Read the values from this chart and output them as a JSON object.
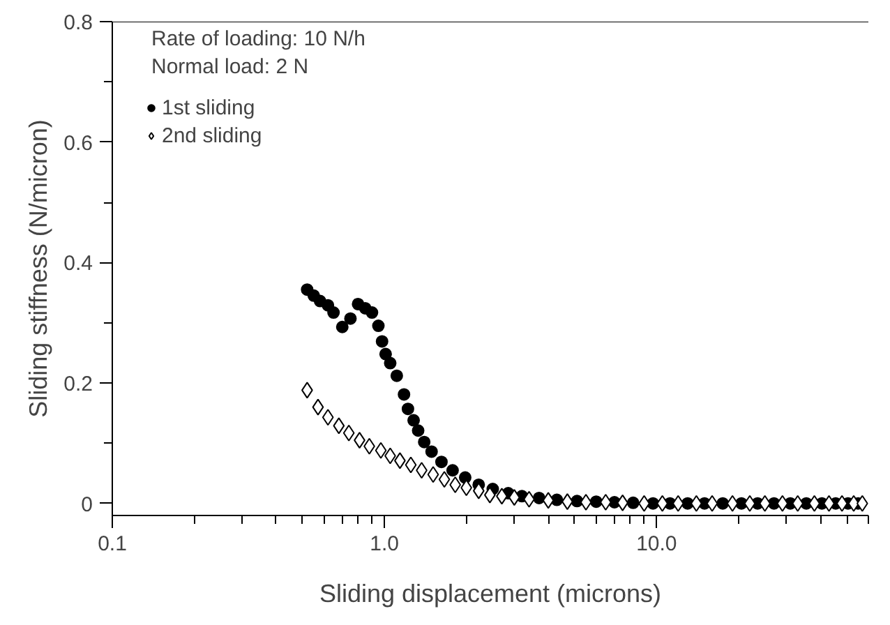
{
  "chart_data": {
    "type": "scatter",
    "xlabel": "Sliding displacement (microns)",
    "ylabel": "Sliding stiffness (N/micron)",
    "log": "x",
    "xlim": [
      0.1,
      60
    ],
    "xticks": [
      {
        "value": 0.1,
        "label": "0.1"
      },
      {
        "value": 1,
        "label": "1.0"
      },
      {
        "value": 10,
        "label": "10.0"
      }
    ],
    "ylim": [
      -0.02,
      0.8
    ],
    "yticks": [
      0,
      0.2,
      0.4,
      0.6,
      0.8
    ],
    "grid": false,
    "legend": "top left",
    "annotations": [
      "Rate of loading: 10 N/h",
      "Normal load: 2 N"
    ],
    "series": [
      {
        "name": "1st sliding",
        "color": "#000000",
        "marker": "circle",
        "x": [
          0.52,
          0.55,
          0.58,
          0.62,
          0.65,
          0.7,
          0.75,
          0.8,
          0.85,
          0.9,
          0.95,
          0.98,
          1.01,
          1.05,
          1.11,
          1.18,
          1.22,
          1.28,
          1.33,
          1.4,
          1.49,
          1.62,
          1.78,
          1.98,
          2.22,
          2.5,
          2.85,
          3.2,
          3.7,
          4.3,
          5.1,
          6,
          7,
          8.2,
          9.7,
          11.2,
          13,
          15,
          17.5,
          20.5,
          23.5,
          27,
          31,
          35.5,
          40.5,
          45.5,
          50.5,
          55
        ],
        "values": [
          0.355,
          0.345,
          0.336,
          0.329,
          0.317,
          0.293,
          0.307,
          0.331,
          0.324,
          0.317,
          0.295,
          0.269,
          0.248,
          0.233,
          0.212,
          0.181,
          0.157,
          0.138,
          0.121,
          0.102,
          0.086,
          0.069,
          0.055,
          0.043,
          0.031,
          0.024,
          0.017,
          0.012,
          0.009,
          0.006,
          0.004,
          0.003,
          0.002,
          0.001,
          0,
          0,
          0,
          0,
          0,
          0,
          0,
          0,
          0,
          0,
          0,
          0,
          0,
          0
        ]
      },
      {
        "name": "2nd sliding",
        "color": "#000000",
        "marker": "diamond",
        "x": [
          0.52,
          0.57,
          0.62,
          0.68,
          0.74,
          0.81,
          0.88,
          0.97,
          1.05,
          1.14,
          1.25,
          1.37,
          1.51,
          1.66,
          1.82,
          2.0,
          2.22,
          2.44,
          2.7,
          3.0,
          3.4,
          4,
          4.7,
          5.5,
          6.5,
          7.5,
          9,
          10.5,
          12,
          14,
          16,
          19,
          22,
          25,
          29,
          33,
          38,
          43,
          48,
          53,
          57
        ],
        "values": [
          0.188,
          0.16,
          0.143,
          0.129,
          0.117,
          0.105,
          0.095,
          0.088,
          0.079,
          0.071,
          0.064,
          0.055,
          0.048,
          0.04,
          0.031,
          0.026,
          0.021,
          0.014,
          0.012,
          0.01,
          0.007,
          0.005,
          0.003,
          0.002,
          0.002,
          0.001,
          0,
          0,
          0,
          0,
          0,
          0,
          0,
          0,
          0,
          0,
          0,
          0,
          0,
          0,
          0
        ]
      }
    ]
  }
}
